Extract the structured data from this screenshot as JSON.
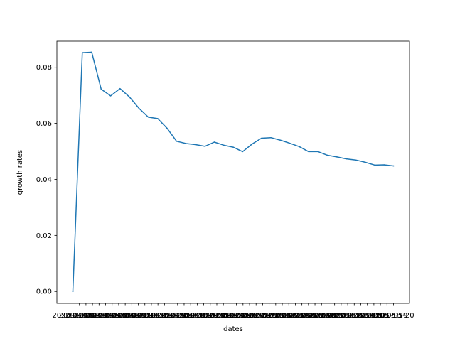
{
  "chart_data": {
    "type": "line",
    "title": "",
    "xlabel": "dates",
    "ylabel": "growth rates",
    "ylim": [
      -0.00425,
      0.0893
    ],
    "yticks": [
      0.0,
      0.02,
      0.04,
      0.06,
      0.08
    ],
    "ytick_labels": [
      "0.00",
      "0.02",
      "0.04",
      "0.06",
      "0.08"
    ],
    "xtick_labels": [
      "2020-04-01",
      "2020-04-02",
      "2020-04-03",
      "2020-04-04",
      "2020-04-05",
      "2020-04-06",
      "2020-04-07",
      "2020-04-08",
      "2020-04-09",
      "2020-04-10",
      "2020-04-11",
      "2020-04-12",
      "2020-04-13",
      "2020-04-14",
      "2020-04-15",
      "2020-04-16",
      "2020-04-17",
      "2020-04-18",
      "2020-04-19",
      "2020-04-20",
      "2020-04-21",
      "2020-04-22",
      "2020-04-23",
      "2020-04-24",
      "2020-04-25",
      "2020-04-26",
      "2020-04-27",
      "2020-04-28",
      "2020-04-29",
      "2020-04-30",
      "2020-05-01",
      "2020-05-02",
      "2020-05-03",
      "2020-05-04",
      "2020-05-05",
      "2020-05-06",
      "2020-05-07",
      "2020-05-08",
      "2020-05-09",
      "2020-05-10",
      "2020-05-11",
      "2020-05-12",
      "2020-05-13",
      "2020-05-14",
      "2020-05-15",
      "2020-05-16",
      "2020-05-17",
      "2020-05-18",
      "2020-05-19",
      "2020-05-20"
    ],
    "grid": false,
    "series": [
      {
        "name": "growth rates",
        "color": "#1f77b4",
        "values": [
          0.0,
          0.0852,
          0.0854,
          0.0722,
          0.0698,
          0.0724,
          0.0694,
          0.0654,
          0.0622,
          0.0617,
          0.0582,
          0.0536,
          0.0528,
          0.0524,
          0.0518,
          0.0533,
          0.0522,
          0.0515,
          0.0499,
          0.0526,
          0.0547,
          0.0549,
          0.054,
          0.0529,
          0.0517,
          0.0499,
          0.0499,
          0.0486,
          0.048,
          0.0473,
          0.0469,
          0.0461,
          0.0451,
          0.0452,
          0.0448
        ]
      }
    ]
  }
}
